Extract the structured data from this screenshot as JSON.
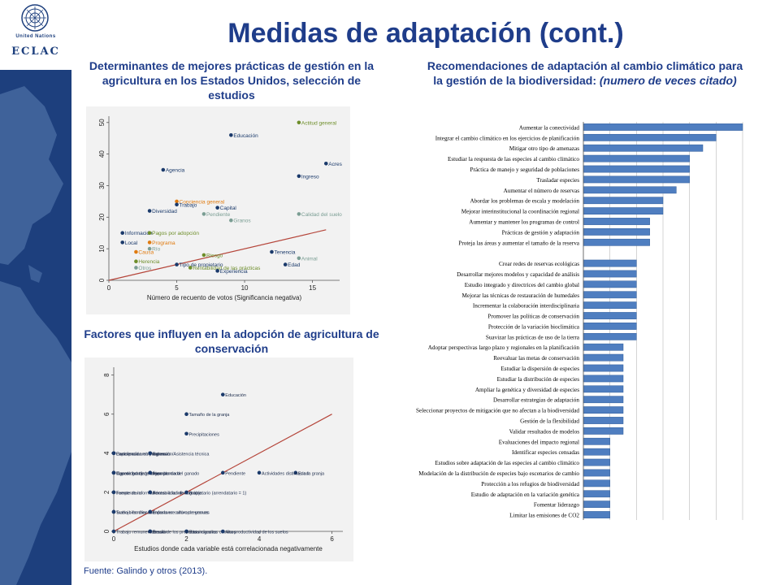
{
  "title": "Medidas de adaptación (cont.)",
  "logo": {
    "org_text": "United Nations",
    "eclac_text": "ECLAC"
  },
  "subtitles": {
    "left_top": "Determinantes de mejores prácticas de gestión en la agricultura en los Estados Unidos, selección de estudios",
    "right_plain": "Recomendaciones de adaptación al cambio climático para la gestión de la biodiversidad: ",
    "right_italic": "(numero de veces citado)",
    "left_bottom": "Factores que influyen en la adopción de agricultura de conservación"
  },
  "source": "Fuente: Galindo y otros (2013).",
  "colors": {
    "title": "#1f3d8a",
    "navy": "#1d3f7d",
    "dot_navy": "#1b3a6b",
    "dot_orange": "#e07b10",
    "dot_green": "#6e8e2a",
    "dot_gray": "#7b9e94",
    "trend": "#b5453a",
    "bar": "#4f7ec0"
  },
  "chart_data": [
    {
      "type": "scatter",
      "xlabel": "Número de recuento de votos (Significancia negativa)",
      "ylabel": "",
      "xlim": [
        0,
        17
      ],
      "ylim": [
        0,
        52
      ],
      "xticks": [
        0,
        5,
        10,
        15
      ],
      "yticks": [
        0,
        10,
        20,
        30,
        40,
        50
      ],
      "trendline": [
        [
          0,
          0
        ],
        [
          16,
          16
        ]
      ],
      "points": [
        {
          "label": "Actitud general",
          "x": 14,
          "y": 50,
          "color": "green"
        },
        {
          "label": "Educación",
          "x": 9,
          "y": 46,
          "color": "navy"
        },
        {
          "label": "Acres",
          "x": 16,
          "y": 37,
          "color": "navy"
        },
        {
          "label": "Agencia",
          "x": 4,
          "y": 35,
          "color": "navy"
        },
        {
          "label": "Ingreso",
          "x": 14,
          "y": 33,
          "color": "navy"
        },
        {
          "label": "Conciencia general",
          "x": 5,
          "y": 25,
          "color": "orange"
        },
        {
          "label": "Trabajo",
          "x": 5,
          "y": 24,
          "color": "navy"
        },
        {
          "label": "Capital",
          "x": 8,
          "y": 23,
          "color": "navy"
        },
        {
          "label": "Diversidad",
          "x": 3,
          "y": 22,
          "color": "navy"
        },
        {
          "label": "Pendiente",
          "x": 7,
          "y": 21,
          "color": "gray"
        },
        {
          "label": "Calidad del suelo",
          "x": 14,
          "y": 21,
          "color": "gray"
        },
        {
          "label": "Granos",
          "x": 9,
          "y": 19,
          "color": "gray"
        },
        {
          "label": "Información",
          "x": 1,
          "y": 15,
          "color": "navy"
        },
        {
          "label": "Pagos por adopción",
          "x": 3,
          "y": 15,
          "color": "green"
        },
        {
          "label": "Local",
          "x": 1,
          "y": 12,
          "color": "navy"
        },
        {
          "label": "Programa",
          "x": 3,
          "y": 12,
          "color": "orange"
        },
        {
          "label": "Río",
          "x": 3,
          "y": 10,
          "color": "gray"
        },
        {
          "label": "Causa",
          "x": 2,
          "y": 9,
          "color": "orange"
        },
        {
          "label": "Tenencia",
          "x": 12,
          "y": 9,
          "color": "navy"
        },
        {
          "label": "Riesgo",
          "x": 7,
          "y": 8,
          "color": "green"
        },
        {
          "label": "Herencia",
          "x": 2,
          "y": 6,
          "color": "green"
        },
        {
          "label": "Animal",
          "x": 14,
          "y": 7,
          "color": "gray"
        },
        {
          "label": "Tipo de propietario",
          "x": 5,
          "y": 5,
          "color": "navy"
        },
        {
          "label": "Otros",
          "x": 2,
          "y": 4,
          "color": "gray"
        },
        {
          "label": "Rentabilidad de las prácticas",
          "x": 6,
          "y": 4,
          "color": "green"
        },
        {
          "label": "Edad",
          "x": 13,
          "y": 5,
          "color": "navy"
        },
        {
          "label": "Experiencia",
          "x": 8,
          "y": 3,
          "color": "navy"
        }
      ]
    },
    {
      "type": "scatter",
      "xlabel": "Estudios donde cada variable está correlacionada negativamente",
      "ylabel": "",
      "xlim": [
        0,
        6.3
      ],
      "ylim": [
        0,
        8.4
      ],
      "xticks": [
        0,
        2,
        4,
        6
      ],
      "yticks": [
        0,
        2,
        4,
        6,
        8
      ],
      "trendline": [
        [
          0,
          0
        ],
        [
          6,
          6
        ]
      ],
      "points": [
        {
          "label": "Educación",
          "x": 3,
          "y": 7
        },
        {
          "label": "Tamaño de la granja",
          "x": 2,
          "y": 6
        },
        {
          "label": "Precipitaciones",
          "x": 2,
          "y": 5
        },
        {
          "label": "Experiencia",
          "x": 0,
          "y": 4
        },
        {
          "label": "Participación en programas",
          "x": 0,
          "y": 4
        },
        {
          "label": "Conciencia ambiental",
          "x": 0,
          "y": 4
        },
        {
          "label": "Extensión/Asistencia técnica",
          "x": 1,
          "y": 4
        },
        {
          "label": "Ingreso",
          "x": 1,
          "y": 4
        },
        {
          "label": "Ingreso bruto de la granja",
          "x": 0,
          "y": 3
        },
        {
          "label": "Capacidad de gestión",
          "x": 0,
          "y": 3
        },
        {
          "label": "Tipo de granja",
          "x": 0,
          "y": 3
        },
        {
          "label": "Área plantada",
          "x": 1,
          "y": 3
        },
        {
          "label": "Importancia del ganado",
          "x": 1,
          "y": 3
        },
        {
          "label": "Pendiente",
          "x": 3,
          "y": 3
        },
        {
          "label": "Edad",
          "x": 5,
          "y": 3
        },
        {
          "label": "Actividades distintas a la granja",
          "x": 4,
          "y": 3
        },
        {
          "label": "Fuente de información",
          "x": 0,
          "y": 2
        },
        {
          "label": "Temperatura",
          "x": 0,
          "y": 2
        },
        {
          "label": "Rentabilidad de la granja",
          "x": 1,
          "y": 2
        },
        {
          "label": "Acceso a la información",
          "x": 1,
          "y": 2
        },
        {
          "label": "Propietario (arrendatario = 1)",
          "x": 2,
          "y": 2
        },
        {
          "label": "Suelo bien drenado",
          "x": 0,
          "y": 1
        },
        {
          "label": "Trabajo familiar",
          "x": 0,
          "y": 1
        },
        {
          "label": "Énfasis en cultivo de granos",
          "x": 1,
          "y": 1
        },
        {
          "label": "Importance of crop revenues",
          "x": 1,
          "y": 1
        },
        {
          "label": "Has. irrigadas",
          "x": 2,
          "y": 0
        },
        {
          "label": "Distancia a los caminos",
          "x": 2,
          "y": 0
        },
        {
          "label": "Deuda",
          "x": 1,
          "y": 0
        },
        {
          "label": "Erosión",
          "x": 1,
          "y": 0
        },
        {
          "label": "Precio de los productos",
          "x": 1,
          "y": 0
        },
        {
          "label": "Trabajo remunerado",
          "x": 0,
          "y": 0
        },
        {
          "label": "Alta productividad de los suelos",
          "x": 3,
          "y": 0
        }
      ]
    },
    {
      "type": "bar",
      "orientation": "horizontal",
      "xlim": [
        0,
        12
      ],
      "categories": [
        "Aumentar la conectividad",
        "Integrar el cambio climático en los ejercicios de planificación",
        "Mitigar otro tipo de amenazas",
        "Estudiar la respuesta de las especies al cambio climático",
        "Práctica de manejo y seguridad de poblaciones",
        "Trasladar especies",
        "Aumentar el número de reservas",
        "Abordar los problemas de escala y modelación",
        "Mejorar interinstitucional la coordinación regional",
        "Aumentar y mantener los programas de control",
        "Prácticas de gestión y adaptación",
        "Proteja las áreas y aumentar el tamaño de la reserva",
        "Crear redes de reservas ecológicas",
        "Desarrollar mejores modelos y capacidad de análisis",
        "Estudio integrado y directrices del cambio global",
        "Mejorar las técnicas de restauración de humedales",
        "Incrementar la colaboración interdisciplinaria",
        "Promover las políticas de conservación",
        "Protección de la variación bioclimática",
        "Suavizar las prácticas de uso de la tierra",
        "Adoptar perspectivas largo plazo y regionales en la planificación",
        "Reevaluar las metas de conservación",
        "Estudiar la dispersión de especies",
        "Estudiar la distribución de especies",
        "Ampliar la genética y diversidad de especies",
        "Desarrollar estrategias de adaptación",
        "Seleccionar proyectos de mitigación que no afectan a la biodiversidad",
        "Gestión de la flexibilidad",
        "Validar resultados de modelos",
        "Evaluaciones del impacto regional",
        "Identificar especies censadas",
        "Estudios sobre adaptación de las especies al cambio climático",
        "Modelación de la distribución de especies bajo escenarios de cambio",
        "Protección a los refugios de biodiversidad",
        "Estudio de adaptación en la variación genética",
        "Fomentar liderazgo",
        "Limitar las emisiones de CO2"
      ],
      "values": [
        12,
        10,
        9,
        8,
        8,
        8,
        7,
        6,
        6,
        5,
        5,
        5,
        4,
        4,
        4,
        4,
        4,
        4,
        4,
        4,
        3,
        3,
        3,
        3,
        3,
        3,
        3,
        3,
        3,
        2,
        2,
        2,
        2,
        2,
        2,
        2,
        2
      ],
      "gap_after_index": 11
    }
  ]
}
